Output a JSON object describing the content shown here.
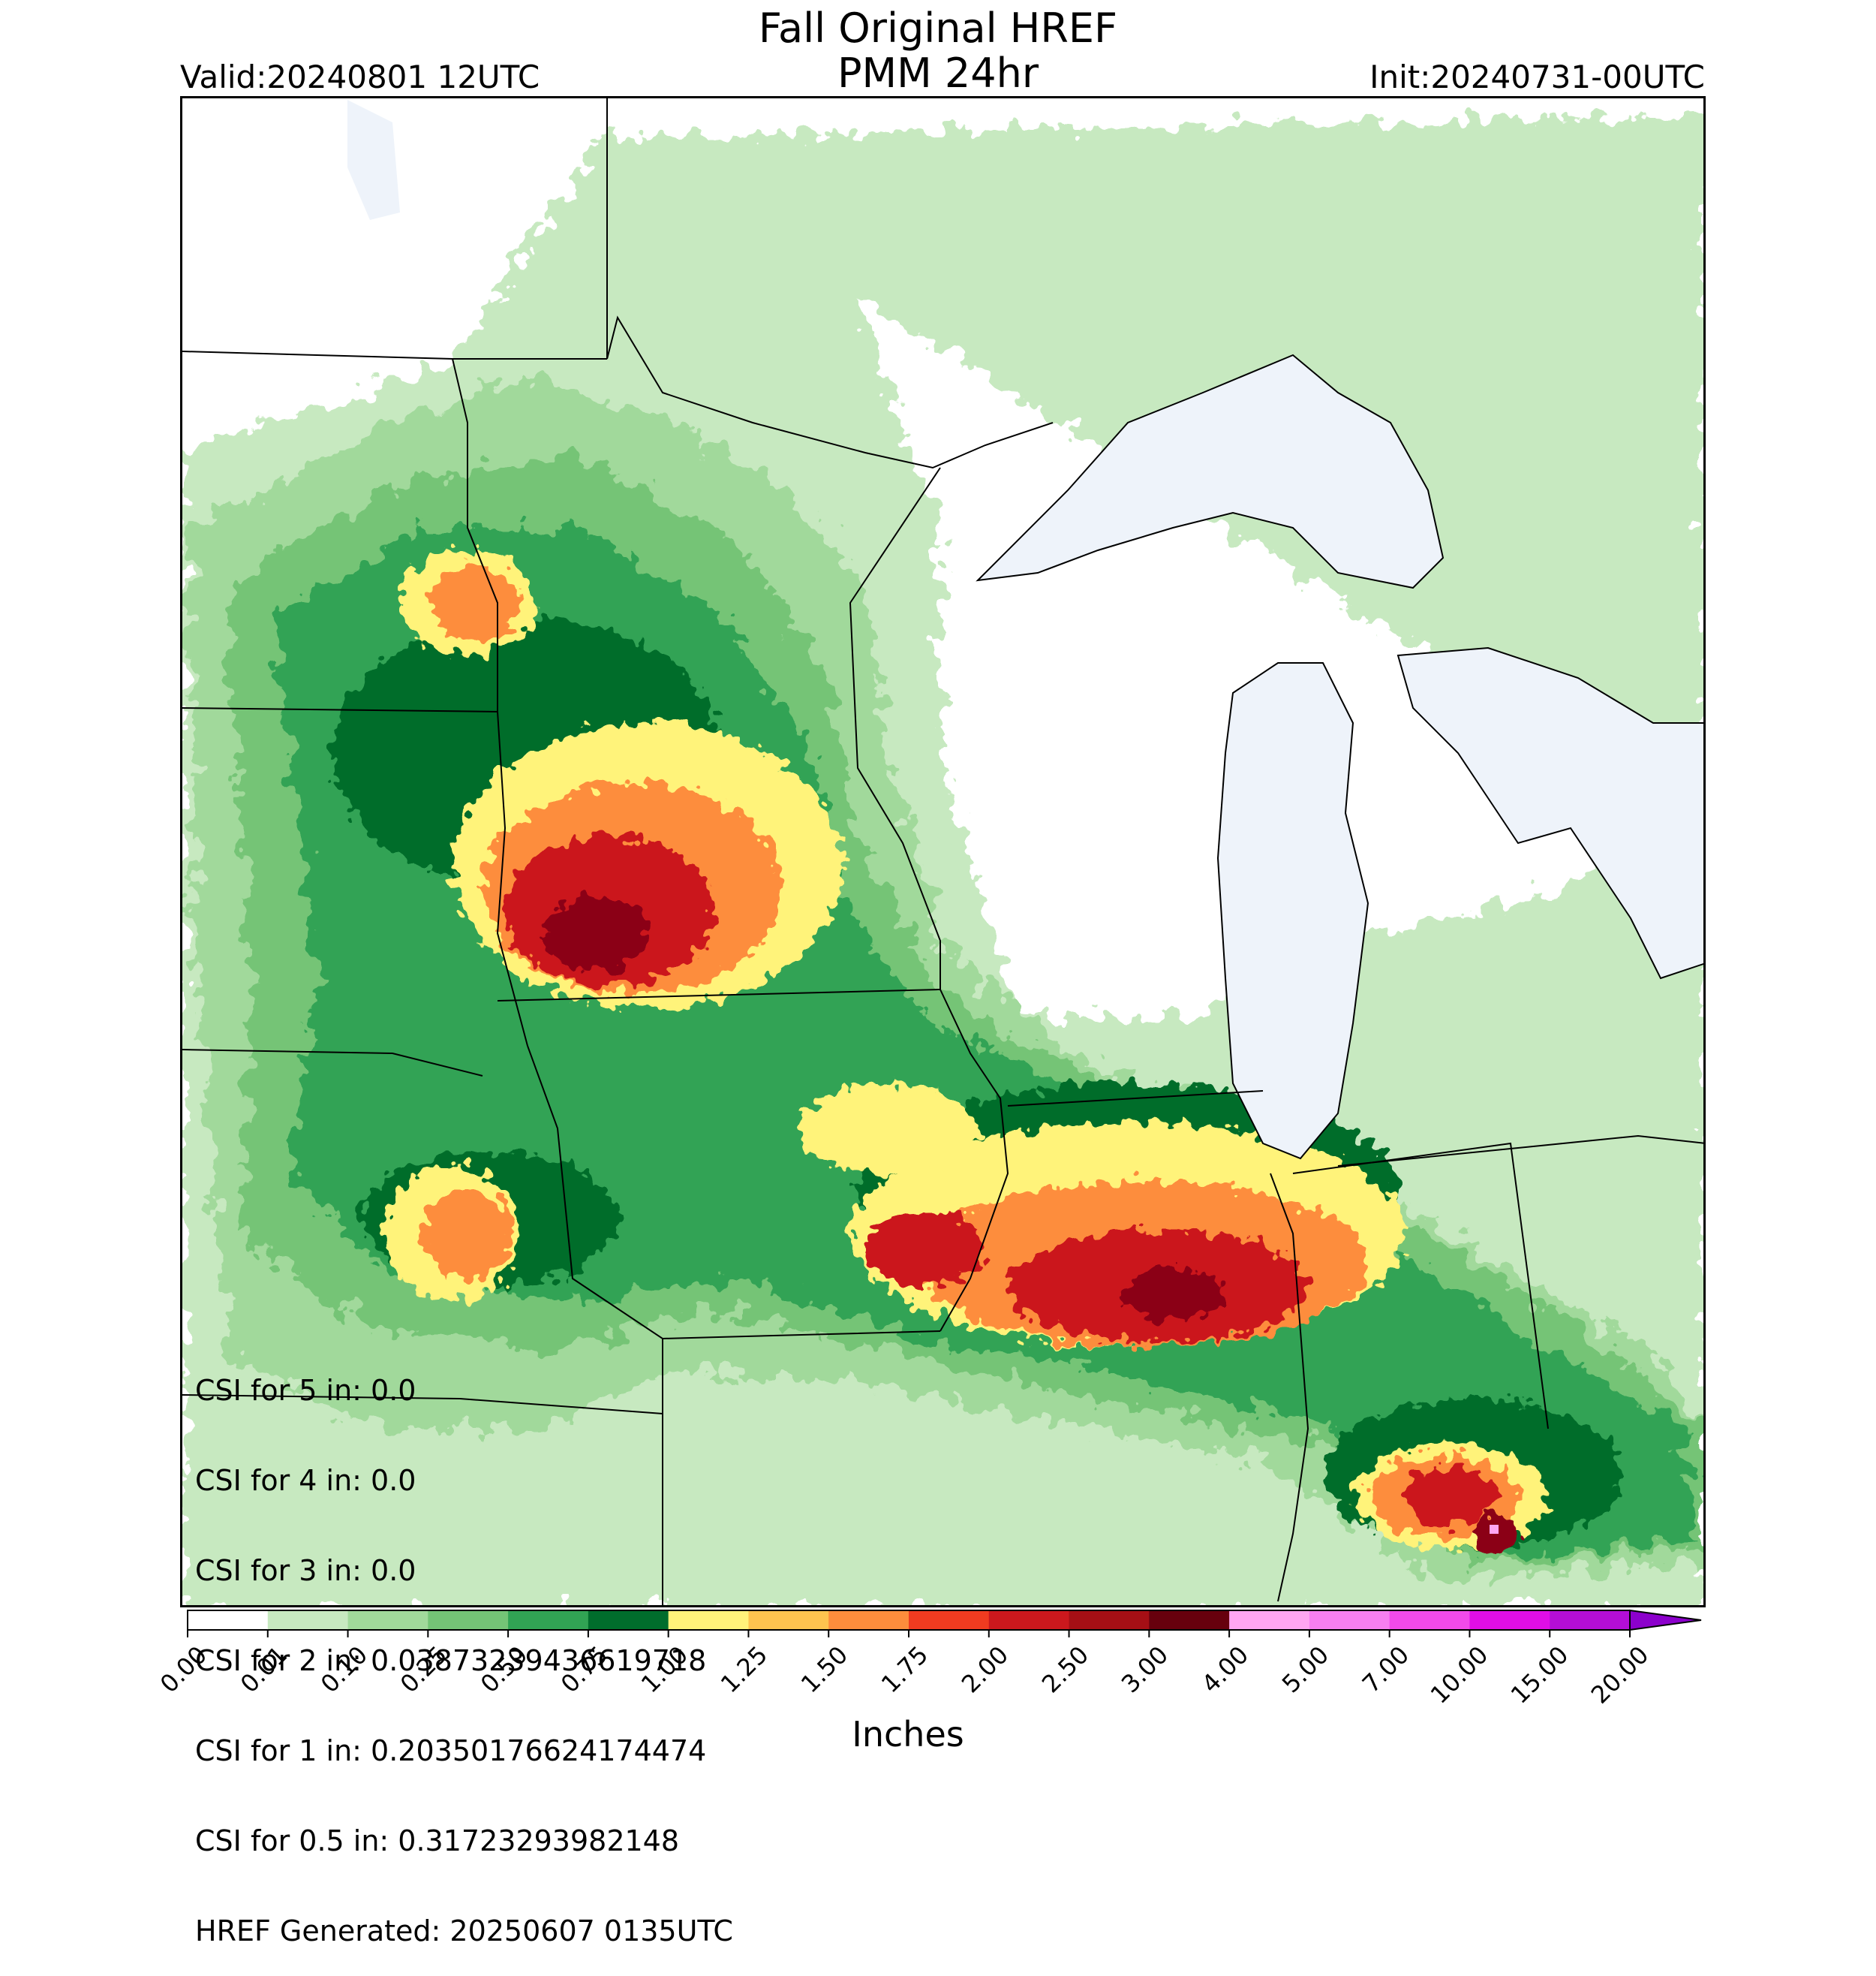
{
  "header": {
    "title_line1": "Fall Original HREF",
    "title_line2": "PMM 24hr",
    "valid": "Valid:20240801 12UTC",
    "init": "Init:20240731-00UTC"
  },
  "stats": [
    "CSI for 5 in: 0.0",
    "CSI for 4 in: 0.0",
    "CSI for 3 in: 0.0",
    "CSI for 2 in: 0.03873239436619718",
    "CSI for 1 in: 0.20350176624174474",
    "CSI for 0.5 in: 0.31723293982148",
    "HREF Generated: 20250607 0135UTC"
  ],
  "colorbar": {
    "units": "Inches",
    "levels": [
      "0.00",
      "0.01",
      "0.10",
      "0.25",
      "0.50",
      "0.75",
      "1.00",
      "1.25",
      "1.50",
      "1.75",
      "2.00",
      "2.50",
      "3.00",
      "4.00",
      "5.00",
      "7.00",
      "10.00",
      "15.00",
      "20.00"
    ],
    "colors": [
      "#ffffff",
      "#c7e9c0",
      "#a1d99b",
      "#74c476",
      "#31a354",
      "#006d2c",
      "#fff37a",
      "#fec44f",
      "#fd8d3c",
      "#f03b20",
      "#cb181d",
      "#a50f15",
      "#67000d",
      "#ffa6f2",
      "#f77ff0",
      "#f24aea",
      "#e00ee6",
      "#b40ed6",
      "#8c00cc"
    ]
  },
  "map_colors": {
    "lake": "#eef3fa",
    "light_green": "#c7e9c0",
    "green": "#a1d99b",
    "mid_green": "#74c476",
    "dark_green": "#31a354",
    "darkest_green": "#006d2c",
    "yellow": "#fff37a",
    "orange": "#fd8d3c",
    "red": "#cb181d",
    "dark_red": "#8b0015",
    "pink": "#ffa6f2"
  }
}
